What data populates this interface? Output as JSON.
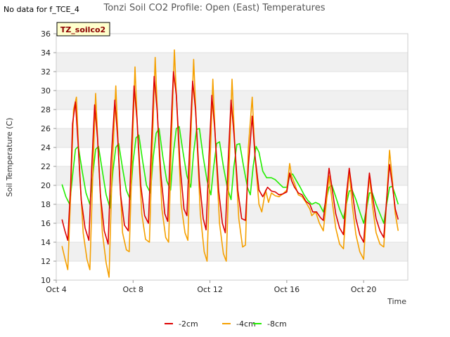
{
  "no_data_note": "No data for f_TCE_4",
  "badge_label": "TZ_soilco2",
  "chart_data": {
    "type": "line",
    "title": "Tonzi Soil CO2 Profile: Open (East) Temperatures",
    "xlabel": "Time",
    "ylabel": "Soil Temperature (C)",
    "x_unit": "day of October",
    "xlim": [
      4,
      22.3
    ],
    "ylim": [
      10,
      36
    ],
    "yticks": [
      10,
      12,
      14,
      16,
      18,
      20,
      22,
      24,
      26,
      28,
      30,
      32,
      34,
      36
    ],
    "xticks": [
      {
        "value": 4,
        "label": "Oct 4"
      },
      {
        "value": 8,
        "label": "Oct 8"
      },
      {
        "value": 12,
        "label": "Oct 12"
      },
      {
        "value": 16,
        "label": "Oct 16"
      },
      {
        "value": 20,
        "label": "Oct 20"
      }
    ],
    "grid": "horizontal bands",
    "legend_position": "bottom-center",
    "series": [
      {
        "name": "-2cm",
        "color": "#dd0000",
        "points": [
          [
            4.3,
            16.4
          ],
          [
            4.45,
            15.2
          ],
          [
            4.6,
            14.2
          ],
          [
            4.75,
            20.0
          ],
          [
            4.85,
            26.5
          ],
          [
            5.0,
            28.8
          ],
          [
            5.15,
            24.0
          ],
          [
            5.3,
            18.5
          ],
          [
            5.5,
            15.5
          ],
          [
            5.7,
            14.2
          ],
          [
            5.85,
            22.0
          ],
          [
            6.0,
            28.5
          ],
          [
            6.15,
            25.0
          ],
          [
            6.3,
            19.0
          ],
          [
            6.5,
            15.2
          ],
          [
            6.7,
            13.8
          ],
          [
            6.85,
            22.5
          ],
          [
            7.05,
            29.0
          ],
          [
            7.2,
            25.0
          ],
          [
            7.35,
            19.0
          ],
          [
            7.55,
            15.8
          ],
          [
            7.75,
            15.2
          ],
          [
            7.9,
            23.0
          ],
          [
            8.05,
            30.5
          ],
          [
            8.2,
            27.0
          ],
          [
            8.4,
            20.0
          ],
          [
            8.6,
            16.8
          ],
          [
            8.8,
            16.0
          ],
          [
            8.95,
            24.0
          ],
          [
            9.1,
            31.5
          ],
          [
            9.25,
            28.0
          ],
          [
            9.45,
            21.0
          ],
          [
            9.65,
            17.0
          ],
          [
            9.8,
            16.2
          ],
          [
            9.95,
            25.0
          ],
          [
            10.1,
            32.0
          ],
          [
            10.25,
            29.5
          ],
          [
            10.45,
            22.0
          ],
          [
            10.65,
            17.5
          ],
          [
            10.8,
            16.8
          ],
          [
            10.95,
            24.5
          ],
          [
            11.1,
            31.0
          ],
          [
            11.25,
            28.0
          ],
          [
            11.45,
            20.5
          ],
          [
            11.65,
            16.5
          ],
          [
            11.8,
            15.3
          ],
          [
            11.95,
            23.0
          ],
          [
            12.1,
            29.5
          ],
          [
            12.25,
            26.0
          ],
          [
            12.45,
            19.5
          ],
          [
            12.65,
            16.0
          ],
          [
            12.8,
            15.0
          ],
          [
            12.95,
            22.5
          ],
          [
            13.1,
            29.0
          ],
          [
            13.25,
            25.5
          ],
          [
            13.45,
            19.5
          ],
          [
            13.65,
            16.5
          ],
          [
            13.85,
            16.3
          ],
          [
            14.0,
            22.0
          ],
          [
            14.2,
            27.3
          ],
          [
            14.35,
            23.0
          ],
          [
            14.55,
            19.5
          ],
          [
            14.75,
            18.8
          ],
          [
            15.0,
            19.8
          ],
          [
            15.2,
            19.4
          ],
          [
            15.4,
            19.3
          ],
          [
            15.6,
            19.0
          ],
          [
            15.8,
            19.1
          ],
          [
            16.0,
            19.3
          ],
          [
            16.15,
            21.3
          ],
          [
            16.25,
            20.5
          ],
          [
            16.4,
            19.8
          ],
          [
            16.6,
            19.2
          ],
          [
            16.8,
            19.0
          ],
          [
            17.0,
            18.3
          ],
          [
            17.2,
            18.0
          ],
          [
            17.35,
            17.2
          ],
          [
            17.55,
            17.2
          ],
          [
            17.75,
            16.6
          ],
          [
            17.9,
            16.3
          ],
          [
            18.05,
            19.0
          ],
          [
            18.2,
            21.8
          ],
          [
            18.35,
            19.8
          ],
          [
            18.55,
            17.0
          ],
          [
            18.75,
            15.5
          ],
          [
            18.95,
            14.8
          ],
          [
            19.1,
            19.0
          ],
          [
            19.25,
            21.8
          ],
          [
            19.4,
            19.5
          ],
          [
            19.6,
            16.5
          ],
          [
            19.8,
            14.8
          ],
          [
            20.0,
            14.0
          ],
          [
            20.15,
            18.0
          ],
          [
            20.3,
            21.3
          ],
          [
            20.45,
            19.0
          ],
          [
            20.65,
            16.5
          ],
          [
            20.85,
            15.2
          ],
          [
            21.05,
            14.5
          ],
          [
            21.2,
            18.5
          ],
          [
            21.35,
            22.2
          ],
          [
            21.5,
            20.0
          ],
          [
            21.65,
            17.5
          ],
          [
            21.8,
            16.4
          ]
        ]
      },
      {
        "name": "-4cm",
        "color": "#f5a000",
        "points": [
          [
            4.3,
            13.6
          ],
          [
            4.45,
            12.3
          ],
          [
            4.6,
            11.1
          ],
          [
            4.75,
            19.0
          ],
          [
            4.9,
            28.0
          ],
          [
            5.05,
            29.3
          ],
          [
            5.2,
            22.0
          ],
          [
            5.4,
            15.0
          ],
          [
            5.6,
            12.2
          ],
          [
            5.75,
            11.1
          ],
          [
            5.9,
            21.0
          ],
          [
            6.05,
            29.7
          ],
          [
            6.2,
            23.0
          ],
          [
            6.4,
            15.0
          ],
          [
            6.6,
            11.8
          ],
          [
            6.75,
            10.3
          ],
          [
            6.9,
            21.0
          ],
          [
            7.1,
            30.5
          ],
          [
            7.25,
            23.0
          ],
          [
            7.45,
            15.0
          ],
          [
            7.65,
            13.2
          ],
          [
            7.8,
            13.0
          ],
          [
            7.95,
            23.0
          ],
          [
            8.1,
            32.5
          ],
          [
            8.25,
            25.0
          ],
          [
            8.45,
            17.0
          ],
          [
            8.65,
            14.3
          ],
          [
            8.85,
            14.0
          ],
          [
            9.0,
            24.0
          ],
          [
            9.15,
            33.5
          ],
          [
            9.3,
            26.0
          ],
          [
            9.5,
            17.5
          ],
          [
            9.7,
            14.5
          ],
          [
            9.85,
            14.0
          ],
          [
            10.0,
            25.0
          ],
          [
            10.15,
            34.3
          ],
          [
            10.3,
            27.5
          ],
          [
            10.5,
            18.0
          ],
          [
            10.7,
            15.0
          ],
          [
            10.85,
            14.2
          ],
          [
            11.0,
            25.0
          ],
          [
            11.15,
            33.3
          ],
          [
            11.3,
            26.0
          ],
          [
            11.5,
            17.0
          ],
          [
            11.7,
            13.0
          ],
          [
            11.85,
            12.0
          ],
          [
            12.0,
            22.0
          ],
          [
            12.15,
            31.2
          ],
          [
            12.3,
            24.0
          ],
          [
            12.5,
            16.0
          ],
          [
            12.7,
            12.8
          ],
          [
            12.85,
            12.0
          ],
          [
            13.0,
            22.0
          ],
          [
            13.15,
            31.2
          ],
          [
            13.3,
            24.0
          ],
          [
            13.5,
            16.5
          ],
          [
            13.7,
            13.5
          ],
          [
            13.85,
            13.7
          ],
          [
            14.0,
            24.0
          ],
          [
            14.2,
            29.3
          ],
          [
            14.35,
            23.0
          ],
          [
            14.55,
            18.0
          ],
          [
            14.7,
            17.2
          ],
          [
            14.9,
            19.5
          ],
          [
            15.05,
            18.2
          ],
          [
            15.2,
            19.2
          ],
          [
            15.4,
            18.9
          ],
          [
            15.6,
            18.8
          ],
          [
            15.8,
            19.1
          ],
          [
            16.0,
            19.5
          ],
          [
            16.15,
            22.3
          ],
          [
            16.25,
            21.0
          ],
          [
            16.4,
            20.2
          ],
          [
            16.6,
            19.0
          ],
          [
            16.8,
            18.8
          ],
          [
            17.0,
            18.2
          ],
          [
            17.2,
            17.5
          ],
          [
            17.3,
            16.8
          ],
          [
            17.5,
            17.2
          ],
          [
            17.7,
            16.0
          ],
          [
            17.9,
            15.2
          ],
          [
            18.05,
            18.0
          ],
          [
            18.2,
            21.0
          ],
          [
            18.35,
            18.5
          ],
          [
            18.55,
            15.5
          ],
          [
            18.75,
            13.8
          ],
          [
            18.95,
            13.3
          ],
          [
            19.1,
            18.0
          ],
          [
            19.25,
            21.5
          ],
          [
            19.4,
            18.0
          ],
          [
            19.6,
            14.8
          ],
          [
            19.8,
            13.0
          ],
          [
            20.0,
            12.2
          ],
          [
            20.15,
            17.5
          ],
          [
            20.3,
            21.0
          ],
          [
            20.45,
            18.0
          ],
          [
            20.65,
            15.0
          ],
          [
            20.85,
            13.8
          ],
          [
            21.05,
            13.5
          ],
          [
            21.2,
            18.5
          ],
          [
            21.35,
            23.7
          ],
          [
            21.5,
            20.5
          ],
          [
            21.65,
            17.0
          ],
          [
            21.8,
            15.2
          ]
        ]
      },
      {
        "name": "-8cm",
        "color": "#22ee00",
        "points": [
          [
            4.3,
            20.1
          ],
          [
            4.5,
            18.8
          ],
          [
            4.7,
            18.0
          ],
          [
            4.85,
            21.0
          ],
          [
            5.0,
            23.8
          ],
          [
            5.15,
            24.1
          ],
          [
            5.35,
            21.5
          ],
          [
            5.55,
            19.2
          ],
          [
            5.75,
            18.0
          ],
          [
            5.9,
            21.0
          ],
          [
            6.05,
            23.8
          ],
          [
            6.2,
            24.1
          ],
          [
            6.4,
            21.5
          ],
          [
            6.6,
            19.0
          ],
          [
            6.8,
            17.6
          ],
          [
            6.95,
            21.5
          ],
          [
            7.1,
            24.0
          ],
          [
            7.25,
            24.4
          ],
          [
            7.45,
            21.8
          ],
          [
            7.65,
            19.5
          ],
          [
            7.85,
            18.5
          ],
          [
            8.0,
            22.5
          ],
          [
            8.15,
            25.0
          ],
          [
            8.3,
            25.3
          ],
          [
            8.5,
            22.5
          ],
          [
            8.7,
            20.0
          ],
          [
            8.9,
            19.2
          ],
          [
            9.05,
            23.0
          ],
          [
            9.2,
            25.5
          ],
          [
            9.35,
            26.0
          ],
          [
            9.55,
            23.0
          ],
          [
            9.75,
            20.5
          ],
          [
            9.95,
            19.5
          ],
          [
            10.1,
            23.5
          ],
          [
            10.25,
            26.0
          ],
          [
            10.4,
            26.2
          ],
          [
            10.6,
            23.5
          ],
          [
            10.8,
            21.0
          ],
          [
            11.0,
            19.8
          ],
          [
            11.15,
            23.5
          ],
          [
            11.3,
            25.9
          ],
          [
            11.45,
            26.0
          ],
          [
            11.65,
            23.0
          ],
          [
            11.85,
            20.5
          ],
          [
            12.05,
            19.0
          ],
          [
            12.2,
            22.0
          ],
          [
            12.35,
            24.4
          ],
          [
            12.5,
            24.6
          ],
          [
            12.7,
            22.0
          ],
          [
            12.9,
            19.8
          ],
          [
            13.1,
            18.5
          ],
          [
            13.25,
            22.0
          ],
          [
            13.4,
            24.3
          ],
          [
            13.55,
            24.4
          ],
          [
            13.75,
            22.0
          ],
          [
            13.95,
            19.8
          ],
          [
            14.1,
            19.0
          ],
          [
            14.25,
            22.0
          ],
          [
            14.4,
            24.1
          ],
          [
            14.55,
            23.5
          ],
          [
            14.75,
            21.5
          ],
          [
            14.95,
            20.8
          ],
          [
            15.2,
            20.8
          ],
          [
            15.4,
            20.6
          ],
          [
            15.6,
            20.2
          ],
          [
            15.8,
            19.8
          ],
          [
            16.0,
            19.8
          ],
          [
            16.15,
            21.0
          ],
          [
            16.3,
            21.2
          ],
          [
            16.5,
            20.5
          ],
          [
            16.7,
            19.8
          ],
          [
            16.9,
            19.0
          ],
          [
            17.1,
            18.4
          ],
          [
            17.3,
            18.0
          ],
          [
            17.5,
            18.2
          ],
          [
            17.7,
            18.0
          ],
          [
            17.9,
            17.2
          ],
          [
            18.05,
            18.5
          ],
          [
            18.2,
            19.8
          ],
          [
            18.35,
            20.0
          ],
          [
            18.55,
            18.8
          ],
          [
            18.75,
            17.5
          ],
          [
            18.95,
            16.5
          ],
          [
            19.1,
            18.0
          ],
          [
            19.25,
            19.4
          ],
          [
            19.4,
            19.5
          ],
          [
            19.6,
            18.5
          ],
          [
            19.8,
            17.2
          ],
          [
            20.0,
            16.0
          ],
          [
            20.15,
            17.5
          ],
          [
            20.3,
            19.2
          ],
          [
            20.45,
            19.2
          ],
          [
            20.65,
            18.0
          ],
          [
            20.85,
            17.0
          ],
          [
            21.05,
            16.0
          ],
          [
            21.2,
            18.0
          ],
          [
            21.35,
            19.8
          ],
          [
            21.5,
            19.9
          ],
          [
            21.65,
            19.0
          ],
          [
            21.8,
            18.0
          ]
        ]
      }
    ]
  }
}
